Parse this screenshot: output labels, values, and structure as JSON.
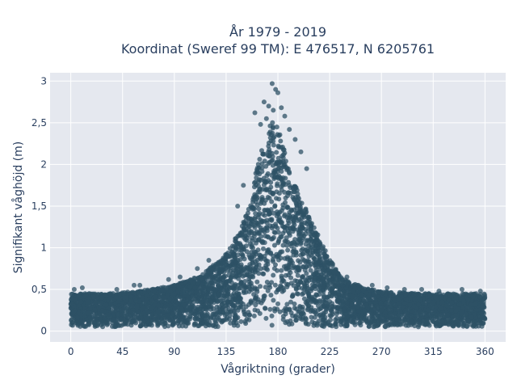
{
  "chart_data": {
    "type": "scatter",
    "title": "År 1979 - 2019",
    "subtitle": "Koordinat (Sweref 99 TM): E 476517, N 6205761",
    "xlabel": "Vågriktning (grader)",
    "ylabel": "Signifikant våghöjd (m)",
    "xlim": [
      -18,
      378
    ],
    "ylim": [
      -0.13,
      3.1
    ],
    "x_ticks": [
      0,
      45,
      90,
      135,
      180,
      225,
      270,
      315,
      360
    ],
    "x_tick_labels": [
      "0",
      "45",
      "90",
      "135",
      "180",
      "225",
      "270",
      "315",
      "360"
    ],
    "y_ticks": [
      0,
      0.5,
      1,
      1.5,
      2,
      2.5,
      3
    ],
    "y_tick_labels": [
      "0",
      "0,5",
      "1",
      "1,5",
      "2",
      "2,5",
      "3"
    ],
    "grid": true,
    "marker_color": "#2e5266",
    "background_color": "#e5e8ef",
    "envelope": {
      "direction": [
        0,
        30,
        60,
        90,
        110,
        130,
        145,
        155,
        160,
        165,
        170,
        175,
        180,
        185,
        190,
        200,
        210,
        220,
        230,
        240,
        250,
        260,
        270,
        300,
        330,
        360
      ],
      "upper_height": [
        0.45,
        0.45,
        0.48,
        0.55,
        0.65,
        0.85,
        1.15,
        1.5,
        1.85,
        2.15,
        2.3,
        2.55,
        2.45,
        2.2,
        1.9,
        1.6,
        1.3,
        1.0,
        0.75,
        0.6,
        0.55,
        0.5,
        0.48,
        0.45,
        0.45,
        0.45
      ],
      "lower_height": [
        0.05,
        0.05,
        0.05,
        0.05,
        0.05,
        0.05,
        0.05,
        0.05,
        0.05,
        0.05,
        0.05,
        0.05,
        0.05,
        0.05,
        0.05,
        0.05,
        0.05,
        0.05,
        0.05,
        0.05,
        0.05,
        0.05,
        0.05,
        0.05,
        0.05,
        0.05
      ]
    },
    "outliers": [
      {
        "x": 175,
        "y": 2.97
      },
      {
        "x": 178,
        "y": 2.9
      },
      {
        "x": 180,
        "y": 2.86
      },
      {
        "x": 168,
        "y": 2.75
      },
      {
        "x": 172,
        "y": 2.7
      },
      {
        "x": 176,
        "y": 2.65
      },
      {
        "x": 183,
        "y": 2.68
      },
      {
        "x": 160,
        "y": 2.62
      },
      {
        "x": 186,
        "y": 2.58
      },
      {
        "x": 170,
        "y": 2.55
      },
      {
        "x": 165,
        "y": 2.48
      },
      {
        "x": 190,
        "y": 2.42
      },
      {
        "x": 195,
        "y": 2.3
      },
      {
        "x": 200,
        "y": 2.15
      },
      {
        "x": 205,
        "y": 1.95
      },
      {
        "x": 150,
        "y": 1.75
      },
      {
        "x": 145,
        "y": 1.5
      },
      {
        "x": 3,
        "y": 0.5
      },
      {
        "x": 10,
        "y": 0.52
      },
      {
        "x": 40,
        "y": 0.5
      },
      {
        "x": 55,
        "y": 0.55
      },
      {
        "x": 60,
        "y": 0.55
      },
      {
        "x": 85,
        "y": 0.62
      },
      {
        "x": 95,
        "y": 0.65
      },
      {
        "x": 110,
        "y": 0.75
      },
      {
        "x": 120,
        "y": 0.85
      },
      {
        "x": 240,
        "y": 0.65
      },
      {
        "x": 250,
        "y": 0.55
      },
      {
        "x": 262,
        "y": 0.55
      },
      {
        "x": 275,
        "y": 0.52
      },
      {
        "x": 290,
        "y": 0.5
      },
      {
        "x": 305,
        "y": 0.5
      },
      {
        "x": 320,
        "y": 0.48
      },
      {
        "x": 340,
        "y": 0.5
      },
      {
        "x": 356,
        "y": 0.48
      }
    ]
  }
}
